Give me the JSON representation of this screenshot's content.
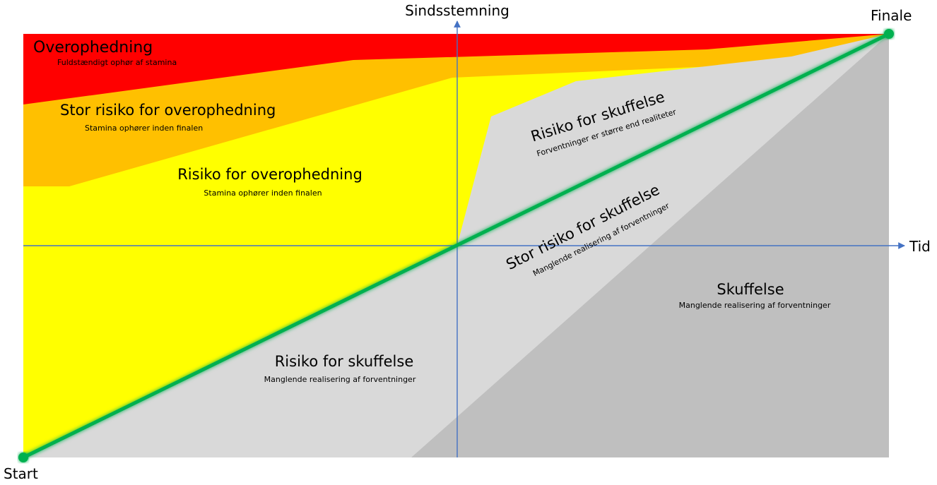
{
  "axes": {
    "y_label": "Sindsstemning",
    "x_label": "Tid"
  },
  "points": {
    "start": "Start",
    "finale": "Finale"
  },
  "zones": {
    "overheating": {
      "title": "Overophedning",
      "subtitle": "Fuldstændigt ophør af stamina",
      "color": "#ff0000"
    },
    "high_risk_overheating": {
      "title": "Stor risiko for overophedning",
      "subtitle": "Stamina ophører inden finalen",
      "color": "#ffc000"
    },
    "risk_overheating": {
      "title": "Risiko for overophedning",
      "subtitle": "Stamina ophører inden finalen",
      "color": "#ffff00"
    },
    "risk_disappointment_upper": {
      "title": "Risiko for skuffelse",
      "subtitle": "Forventninger er større end realiteter",
      "color": "#d9d9d9"
    },
    "high_risk_disappointment": {
      "title": "Stor risiko for skuffelse",
      "subtitle": "Manglende realisering af forventninger",
      "color": "#d9d9d9"
    },
    "disappointment": {
      "title": "Skuffelse",
      "subtitle": "Manglende realisering af forventninger",
      "color": "#bfbfbf"
    },
    "risk_disappointment_lower": {
      "title": "Risiko for skuffelse",
      "subtitle": "Manglende realisering af forventninger",
      "color": "#d9d9d9"
    }
  },
  "colors": {
    "ideal_path": "#00b050",
    "axis": "#4472c4"
  }
}
